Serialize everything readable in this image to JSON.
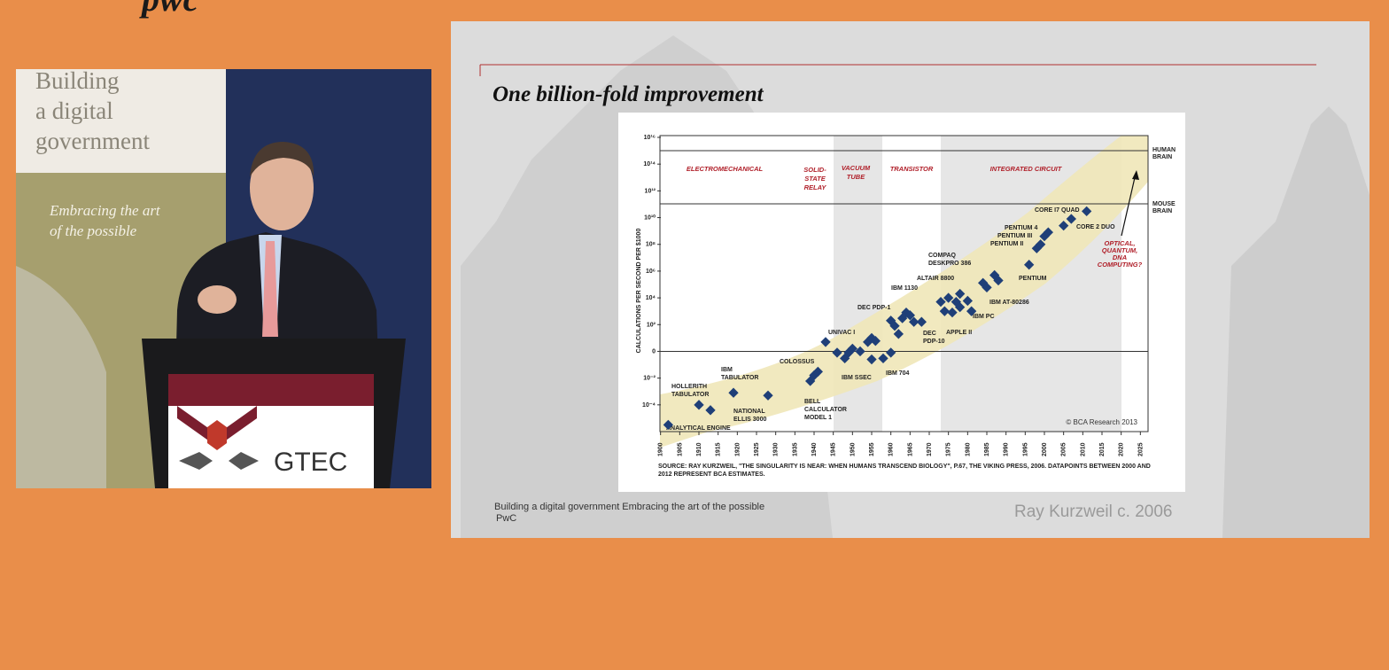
{
  "logo": "pwc",
  "video": {
    "banner_lines": [
      "Building",
      "a digital",
      "government"
    ],
    "tagline_lines": [
      "Embracing the art",
      "of the possible"
    ],
    "podium": "GTEC"
  },
  "slide": {
    "title": "One billion-fold improvement",
    "chart": {
      "type": "scatter",
      "y_axis_label": "CALCULATIONS PER SECOND PER $1000",
      "log_y": true,
      "xlim": [
        1898,
        2027
      ],
      "xticks": [
        1900,
        1905,
        1910,
        1915,
        1920,
        1925,
        1930,
        1935,
        1940,
        1945,
        1950,
        1955,
        1960,
        1965,
        1970,
        1975,
        1980,
        1985,
        1990,
        1995,
        2000,
        2005,
        2010,
        2015,
        2020,
        2025
      ],
      "ylim": [
        1e-06,
        1e+16
      ],
      "yticks": [
        {
          "value": 1e+16,
          "label": "10¹⁶"
        },
        {
          "value": 100000000000000.0,
          "label": "10¹⁴"
        },
        {
          "value": 1000000000000.0,
          "label": "10¹²"
        },
        {
          "value": 10000000000.0,
          "label": "10¹⁰"
        },
        {
          "value": 100000000.0,
          "label": "10⁸"
        },
        {
          "value": 1000000.0,
          "label": "10⁶"
        },
        {
          "value": 10000.0,
          "label": "10⁴"
        },
        {
          "value": 100.0,
          "label": "10²"
        },
        {
          "value": 1,
          "label": "0"
        },
        {
          "value": 0.01,
          "label": "10⁻²"
        },
        {
          "value": 0.0001,
          "label": "10⁻⁴"
        }
      ],
      "color": "#1f3f78",
      "x": [
        1902,
        1910,
        1913,
        1919,
        1928,
        1939,
        1940,
        1941,
        1943,
        1946,
        1948,
        1949,
        1950,
        1952,
        1954,
        1955,
        1956,
        1955,
        1958,
        1960,
        1960,
        1961,
        1962,
        1963,
        1964,
        1965,
        1966,
        1968,
        1973,
        1974,
        1975,
        1976,
        1977,
        1978,
        1978,
        1980,
        1981,
        1984,
        1985,
        1987,
        1988,
        1996,
        1998,
        1999,
        2000,
        2001,
        2005,
        2007,
        2011
      ],
      "values": [
        3.2e-06,
        0.0001,
        4e-05,
        0.0008,
        0.0005,
        0.006,
        0.016,
        0.03,
        5,
        0.8,
        0.3,
        0.8,
        1.6,
        1,
        5,
        10,
        6,
        0.25,
        0.3,
        0.8,
        200,
        80,
        20,
        300,
        800,
        500,
        160,
        160,
        5000,
        1000,
        10000,
        800,
        5000,
        20000,
        2000,
        6000,
        1000,
        130000,
        60000,
        500000,
        200000,
        3000000,
        50000000,
        100000000,
        400000000,
        800000000,
        2500000000,
        8000000000,
        30000000000
      ],
      "eras": [
        [
          "ELECTROMECHANICAL"
        ],
        [
          "SOLID-",
          "STATE",
          "RELAY"
        ],
        [
          "VACUUM",
          "TUBE"
        ],
        [
          "TRANSISTOR"
        ],
        [
          "INTEGRATED CIRCUIT"
        ]
      ],
      "annotations": [
        [
          "ANALYTICAL ENGINE"
        ],
        [
          "HOLLERITH",
          "TABULATOR"
        ],
        [
          "IBM",
          "TABULATOR"
        ],
        [
          "NATIONAL",
          "ELLIS 3000"
        ],
        [
          "COLOSSUS"
        ],
        [
          "BELL",
          "CALCULATOR",
          "MODEL 1"
        ],
        [
          "UNIVAC I"
        ],
        [
          "IBM SSEC"
        ],
        [
          "DEC PDP-1"
        ],
        [
          "IBM 704"
        ],
        [
          "IBM 1130"
        ],
        [
          "DEC",
          "PDP-10"
        ],
        [
          "ALTAIR 8800"
        ],
        [
          "COMPAQ",
          "DESKPRO 386"
        ],
        [
          "APPLE II"
        ],
        [
          "IBM PC"
        ],
        [
          "IBM AT-80286"
        ],
        [
          "PENTIUM"
        ],
        [
          "PENTIUM 4",
          "PENTIUM III",
          "PENTIUM II"
        ],
        [
          "CORE I7 QUAD"
        ],
        [
          "CORE 2 DUO"
        ]
      ],
      "human_brain": [
        "HUMAN",
        "BRAIN"
      ],
      "mouse_brain": [
        "MOUSE",
        "BRAIN"
      ],
      "future": [
        "OPTICAL,",
        "QUANTUM,",
        "DNA",
        "COMPUTING?"
      ],
      "copyright": "© BCA Research 2013",
      "source_lines": [
        "SOURCE: RAY KURZWEIL, \"THE SINGULARITY IS NEAR: WHEN HUMANS TRANSCEND BIOLOGY\", P.67, THE VIKING PRESS, 2006. DATAPOINTS BETWEEN 2000 AND",
        "2012 REPRESENT BCA ESTIMATES."
      ]
    },
    "footer": "Building a digital government  Embracing the art of the possible",
    "footer_company": "PwC",
    "credit": "Ray Kurzweil c. 2006"
  }
}
